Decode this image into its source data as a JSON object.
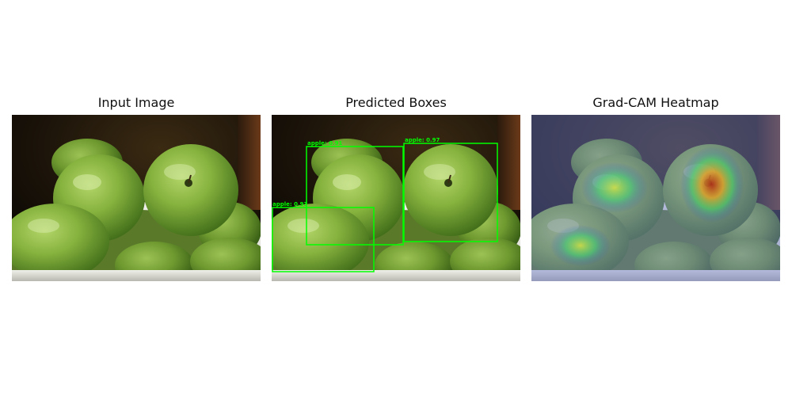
{
  "panels": {
    "input": {
      "title": "Input Image"
    },
    "predicted": {
      "title": "Predicted Boxes"
    },
    "gradcam": {
      "title": "Grad-CAM Heatmap"
    }
  },
  "detections": [
    {
      "label": "apple: 0.91",
      "class": "apple",
      "score": 0.91
    },
    {
      "label": "apple: 0.97",
      "class": "apple",
      "score": 0.97
    },
    {
      "label": "apple: 0.93",
      "class": "apple",
      "score": 0.93
    }
  ],
  "colors": {
    "box": "#00ff00",
    "apple": "#7fae3a",
    "bowl": "#d8d8d2",
    "background": "#1a1208"
  }
}
